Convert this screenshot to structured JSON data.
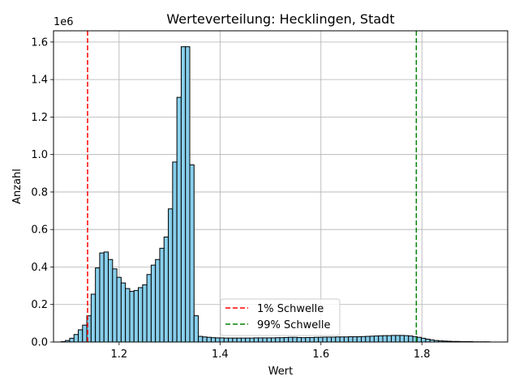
{
  "chart_data": {
    "type": "bar",
    "title": "Werteverteilung: Hecklingen, Stadt",
    "xlabel": "Wert",
    "ylabel": "Anzahl",
    "y_scale_label": "1e6",
    "xlim": [
      1.07,
      1.97
    ],
    "ylim": [
      0,
      1.66
    ],
    "grid": true,
    "legend_position": "lower-center",
    "x_ticks": [
      {
        "value": 1.2,
        "label": "1.2"
      },
      {
        "value": 1.4,
        "label": "1.4"
      },
      {
        "value": 1.6,
        "label": "1.6"
      },
      {
        "value": 1.8,
        "label": "1.8"
      }
    ],
    "y_ticks": [
      {
        "value": 0.0,
        "label": "0.0"
      },
      {
        "value": 0.2,
        "label": "0.2"
      },
      {
        "value": 0.4,
        "label": "0.4"
      },
      {
        "value": 0.6,
        "label": "0.6"
      },
      {
        "value": 0.8,
        "label": "0.8"
      },
      {
        "value": 1.0,
        "label": "1.0"
      },
      {
        "value": 1.2,
        "label": "1.2"
      },
      {
        "value": 1.4,
        "label": "1.4"
      },
      {
        "value": 1.6,
        "label": "1.6"
      }
    ],
    "bin_start": 1.085,
    "bin_width": 0.0085,
    "values": [
      0.002,
      0.008,
      0.02,
      0.04,
      0.065,
      0.09,
      0.14,
      0.255,
      0.395,
      0.475,
      0.48,
      0.44,
      0.39,
      0.345,
      0.315,
      0.285,
      0.27,
      0.275,
      0.29,
      0.305,
      0.36,
      0.41,
      0.44,
      0.5,
      0.56,
      0.71,
      0.96,
      1.305,
      1.575,
      1.575,
      0.945,
      0.14,
      0.03,
      0.027,
      0.025,
      0.023,
      0.022,
      0.022,
      0.021,
      0.021,
      0.021,
      0.021,
      0.021,
      0.021,
      0.021,
      0.022,
      0.022,
      0.022,
      0.022,
      0.022,
      0.023,
      0.023,
      0.024,
      0.025,
      0.025,
      0.024,
      0.023,
      0.024,
      0.024,
      0.025,
      0.025,
      0.026,
      0.026,
      0.026,
      0.027,
      0.027,
      0.027,
      0.028,
      0.028,
      0.028,
      0.029,
      0.03,
      0.031,
      0.032,
      0.033,
      0.034,
      0.034,
      0.035,
      0.035,
      0.035,
      0.034,
      0.032,
      0.029,
      0.025,
      0.02,
      0.015,
      0.011,
      0.008,
      0.006,
      0.005,
      0.004,
      0.003,
      0.003,
      0.002,
      0.002,
      0.002,
      0.001,
      0.001,
      0.001,
      0.001
    ],
    "bar_color": "#87ceeb",
    "bar_edge_color": "#000000",
    "reference_lines": [
      {
        "name": "1% Schwelle",
        "x": 1.1375,
        "color": "#ff0000"
      },
      {
        "name": "99% Schwelle",
        "x": 1.789,
        "color": "#008000"
      }
    ]
  }
}
